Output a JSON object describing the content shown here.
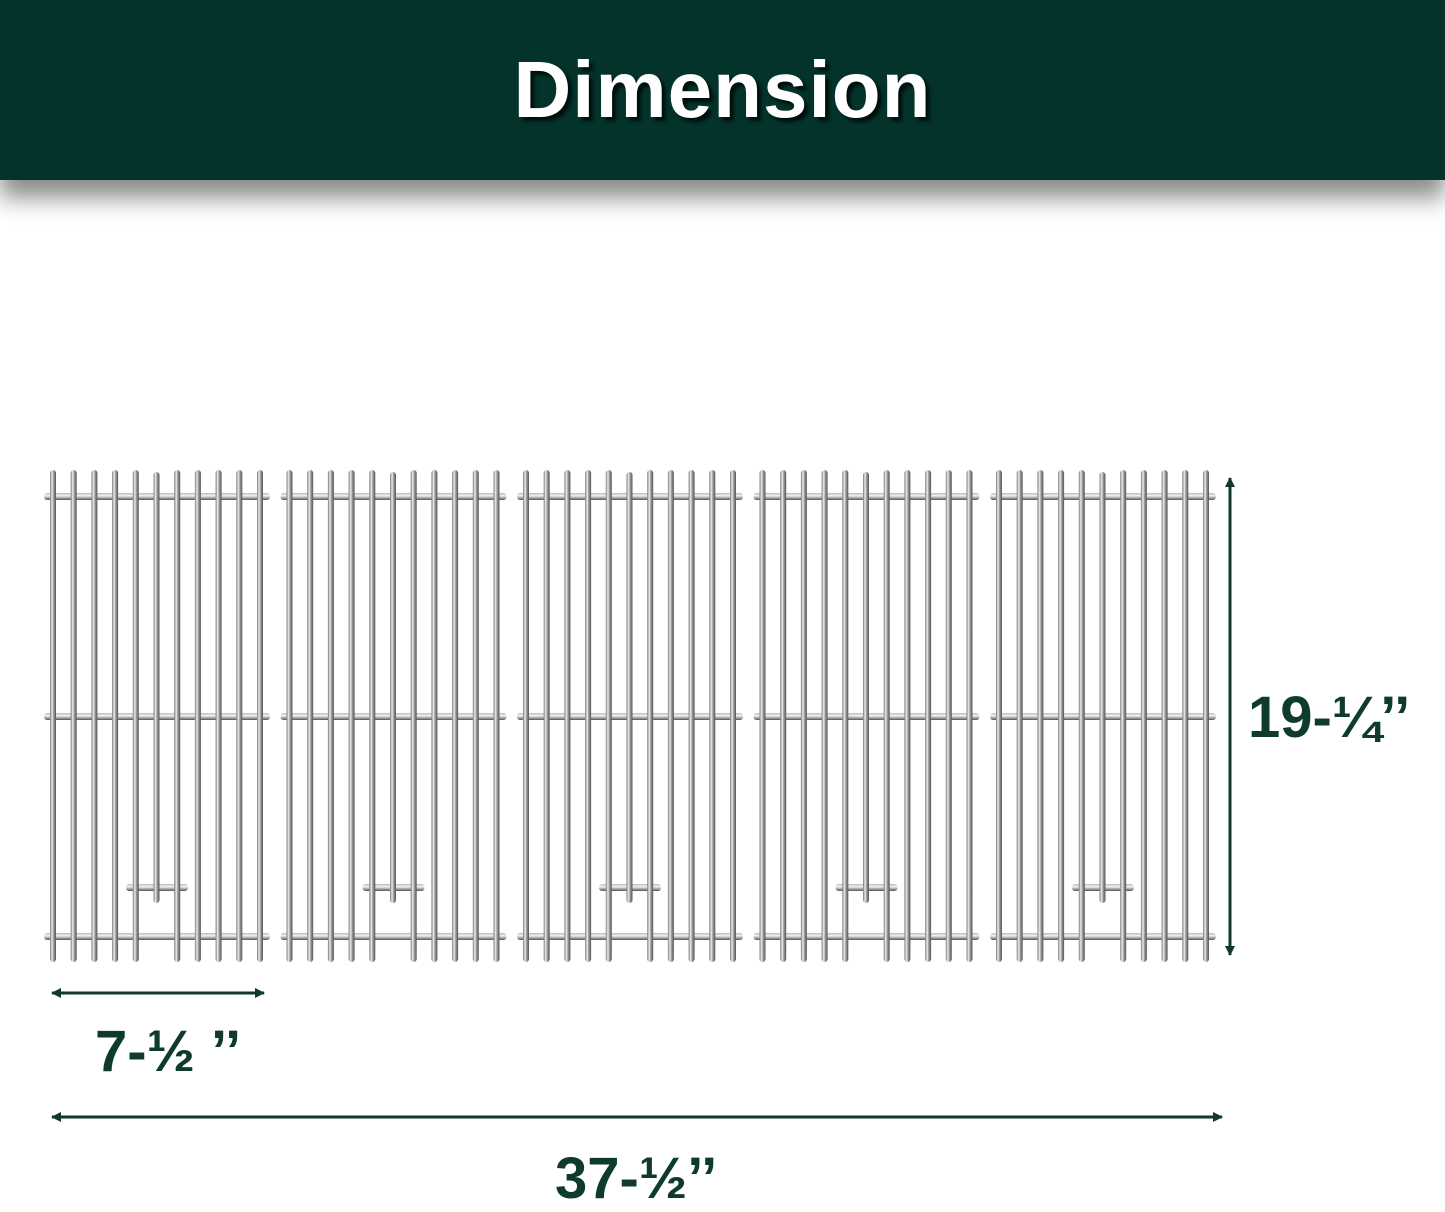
{
  "header": {
    "title": "Dimension"
  },
  "dimensions": {
    "height": "19-¼’’",
    "single_width": "7-½ ’’",
    "total_width": "37-½’’"
  },
  "grates": {
    "count": 5,
    "bars_per_grate": 11
  },
  "colors": {
    "header_bg": "#03332a",
    "dimension_text": "#0e3b2e",
    "title_text": "#ffffff"
  }
}
